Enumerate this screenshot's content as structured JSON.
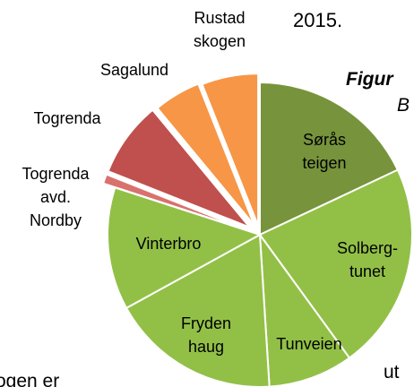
{
  "chart_data": {
    "type": "pie",
    "categories": [
      "Sørås\nteigen",
      "Solberg-\ntunet",
      "Tunveien",
      "Fryden\nhaug",
      "Vinterbro",
      "Togrenda\navd.\nNordby",
      "Togrenda",
      "Sagalund",
      "Rustad\nskogen"
    ],
    "values": [
      18,
      22,
      9,
      18,
      13,
      1,
      8,
      5,
      6
    ],
    "colors": [
      "#77933c",
      "#92c047",
      "#92c047",
      "#92c047",
      "#92c047",
      "#d9716e",
      "#c0504d",
      "#f79646",
      "#f79646"
    ]
  },
  "fragments": {
    "year": "2015.",
    "figure": "Figur",
    "b": "B",
    "bottom_left": "ogen er",
    "bottom_right": "ut"
  }
}
